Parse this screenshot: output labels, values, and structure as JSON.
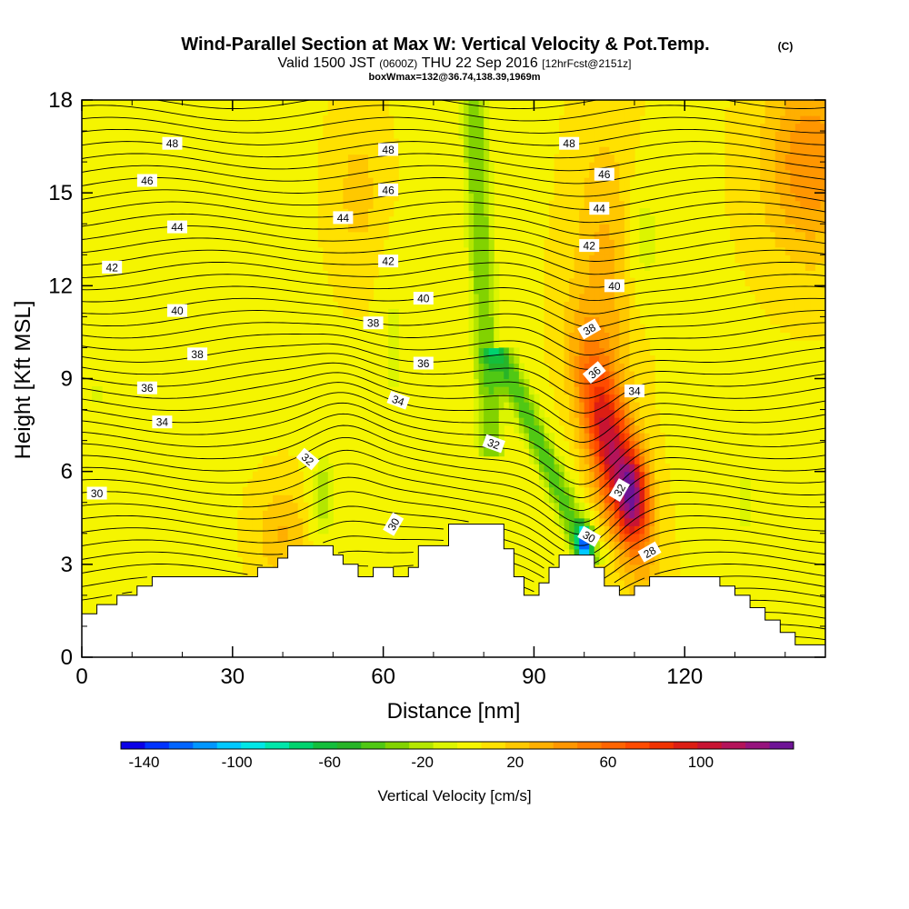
{
  "title": {
    "main": "Wind-Parallel Section at Max W: Vertical Velocity & Pot.Temp.",
    "copyright": "(C)",
    "valid_prefix": "Valid 1500 JST",
    "valid_zulu": "(0600Z)",
    "valid_date": "THU 22 Sep 2016",
    "forecast": "[12hrFcst@2151z]",
    "box_info": "boxWmax=132@36.74,138.39,1969m"
  },
  "chart_data": {
    "type": "heatmap",
    "title": "Wind-Parallel Section at Max W: Vertical Velocity & Pot.Temp.",
    "xlabel": "Distance [nm]",
    "ylabel": "Height [Kft MSL]",
    "xlim": [
      0,
      148
    ],
    "ylim": [
      0,
      18
    ],
    "x_ticks": [
      0,
      30,
      60,
      90,
      120
    ],
    "y_ticks": [
      0,
      3,
      6,
      9,
      12,
      15,
      18
    ],
    "grid": false,
    "colorbar": {
      "label": "Vertical Velocity [cm/s]",
      "tick_values": [
        -140,
        -100,
        -60,
        -20,
        20,
        60,
        100
      ],
      "bin_edges": [
        -150,
        -140,
        -130,
        -120,
        -110,
        -100,
        -90,
        -80,
        -70,
        -60,
        -50,
        -40,
        -30,
        -20,
        -10,
        10,
        20,
        30,
        40,
        50,
        60,
        70,
        80,
        90,
        100,
        110,
        120,
        130,
        140
      ],
      "colors": [
        "#0a00e6",
        "#0033ff",
        "#0064ff",
        "#0096ff",
        "#00c8ff",
        "#00e6e6",
        "#00e6aa",
        "#00d26e",
        "#14be3c",
        "#28b428",
        "#50c814",
        "#82d200",
        "#b4e600",
        "#dcf500",
        "#f5f500",
        "#ffe100",
        "#ffc800",
        "#ffaf00",
        "#ff9600",
        "#ff7d00",
        "#ff6400",
        "#ff4b00",
        "#f03200",
        "#dc1e14",
        "#c81432",
        "#b4145a",
        "#96147d",
        "#6e1496"
      ]
    },
    "vertical_velocity_features": [
      {
        "x": 110,
        "y": 5.3,
        "w": 135,
        "note": "peak updraft"
      },
      {
        "x": 100,
        "y": 3.8,
        "w": -130,
        "note": "peak downdraft"
      },
      {
        "x": 105,
        "y": 8.0,
        "w": 70
      },
      {
        "x": 96,
        "y": 7.0,
        "w": -55
      },
      {
        "x": 80,
        "y": 13.0,
        "w": -45
      },
      {
        "x": 48,
        "y": 5.0,
        "w": -35
      },
      {
        "x": 62,
        "y": 10.0,
        "w": -18
      },
      {
        "x": 112,
        "y": 13.5,
        "w": -22
      },
      {
        "x": 132,
        "y": 5.0,
        "w": -22
      },
      {
        "x": 145,
        "y": 16.0,
        "w": 45
      },
      {
        "x": 55,
        "y": 15.0,
        "w": 22
      },
      {
        "x": 40,
        "y": 4.0,
        "w": 28
      }
    ],
    "theta_contours": {
      "units": "C",
      "levels": [
        28,
        30,
        32,
        34,
        36,
        38,
        40,
        42,
        44,
        46,
        48
      ],
      "labels": [
        {
          "text": "48",
          "x": 18,
          "y": 16.6,
          "angle": 0
        },
        {
          "text": "48",
          "x": 61,
          "y": 16.4,
          "angle": 0
        },
        {
          "text": "48",
          "x": 97,
          "y": 16.6,
          "angle": 0
        },
        {
          "text": "46",
          "x": 13,
          "y": 15.4,
          "angle": 0
        },
        {
          "text": "46",
          "x": 61,
          "y": 15.1,
          "angle": 0
        },
        {
          "text": "46",
          "x": 104,
          "y": 15.6,
          "angle": 0
        },
        {
          "text": "44",
          "x": 19,
          "y": 13.9,
          "angle": 0
        },
        {
          "text": "44",
          "x": 52,
          "y": 14.2,
          "angle": 0
        },
        {
          "text": "44",
          "x": 103,
          "y": 14.5,
          "angle": 0
        },
        {
          "text": "42",
          "x": 6,
          "y": 12.6,
          "angle": 0
        },
        {
          "text": "42",
          "x": 61,
          "y": 12.8,
          "angle": 0
        },
        {
          "text": "42",
          "x": 101,
          "y": 13.3,
          "angle": 0
        },
        {
          "text": "40",
          "x": 19,
          "y": 11.2,
          "angle": 0
        },
        {
          "text": "40",
          "x": 68,
          "y": 11.6,
          "angle": 0
        },
        {
          "text": "40",
          "x": 106,
          "y": 12.0,
          "angle": 0
        },
        {
          "text": "38",
          "x": 58,
          "y": 10.8,
          "angle": 0
        },
        {
          "text": "38",
          "x": 101,
          "y": 10.6,
          "angle": -30
        },
        {
          "text": "38",
          "x": 23,
          "y": 9.8,
          "angle": 0
        },
        {
          "text": "36",
          "x": 68,
          "y": 9.5,
          "angle": 0
        },
        {
          "text": "36",
          "x": 13,
          "y": 8.7,
          "angle": 0
        },
        {
          "text": "36",
          "x": 102,
          "y": 9.2,
          "angle": -40
        },
        {
          "text": "34",
          "x": 63,
          "y": 8.3,
          "angle": 20
        },
        {
          "text": "34",
          "x": 16,
          "y": 7.6,
          "angle": 0
        },
        {
          "text": "34",
          "x": 110,
          "y": 8.6,
          "angle": 0
        },
        {
          "text": "32",
          "x": 45,
          "y": 6.4,
          "angle": 40
        },
        {
          "text": "32",
          "x": 82,
          "y": 6.9,
          "angle": 20
        },
        {
          "text": "32",
          "x": 107,
          "y": 5.4,
          "angle": -60
        },
        {
          "text": "30",
          "x": 3,
          "y": 5.3,
          "angle": 0
        },
        {
          "text": "30",
          "x": 62,
          "y": 4.3,
          "angle": -60
        },
        {
          "text": "30",
          "x": 101,
          "y": 3.9,
          "angle": 30
        },
        {
          "text": "28",
          "x": 113,
          "y": 3.4,
          "angle": -30
        }
      ]
    },
    "terrain_profile_kft": [
      [
        0,
        1.4
      ],
      [
        3,
        1.7
      ],
      [
        7,
        2.0
      ],
      [
        11,
        2.3
      ],
      [
        14,
        2.6
      ],
      [
        20,
        2.6
      ],
      [
        32,
        2.6
      ],
      [
        35,
        2.9
      ],
      [
        39,
        3.2
      ],
      [
        41,
        3.6
      ],
      [
        48,
        3.6
      ],
      [
        50,
        3.3
      ],
      [
        52,
        3.0
      ],
      [
        55,
        2.6
      ],
      [
        58,
        2.9
      ],
      [
        62,
        2.6
      ],
      [
        65,
        2.9
      ],
      [
        67,
        3.6
      ],
      [
        71,
        3.6
      ],
      [
        73,
        4.3
      ],
      [
        82,
        4.3
      ],
      [
        84,
        3.5
      ],
      [
        86,
        2.6
      ],
      [
        88,
        2.0
      ],
      [
        91,
        2.4
      ],
      [
        93,
        2.9
      ],
      [
        95,
        3.3
      ],
      [
        99,
        3.3
      ],
      [
        102,
        2.9
      ],
      [
        104,
        2.3
      ],
      [
        107,
        2.0
      ],
      [
        110,
        2.3
      ],
      [
        113,
        2.6
      ],
      [
        124,
        2.6
      ],
      [
        127,
        2.3
      ],
      [
        130,
        2.0
      ],
      [
        133,
        1.6
      ],
      [
        136,
        1.2
      ],
      [
        139,
        0.8
      ],
      [
        142,
        0.4
      ],
      [
        148,
        0.4
      ]
    ]
  }
}
